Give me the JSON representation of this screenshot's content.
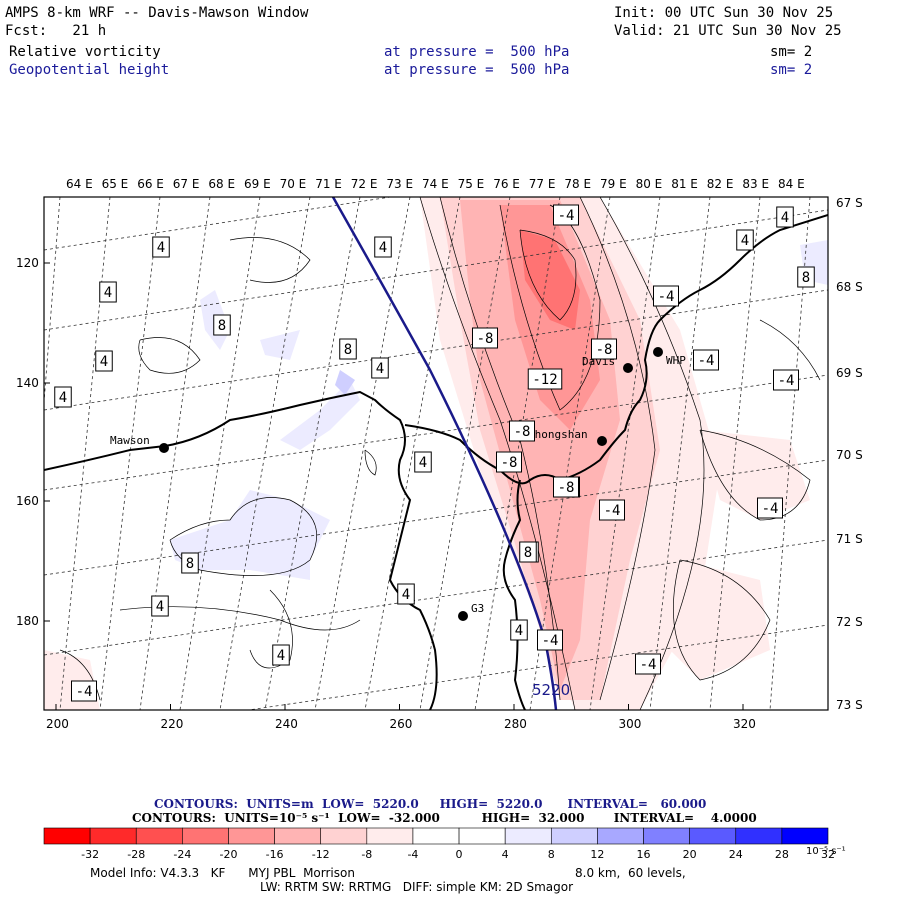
{
  "header": {
    "title": "AMPS 8-km WRF -- Davis-Mawson Window",
    "init": "Init: 00 UTC Sun 30 Nov 25",
    "fcst": "Fcst:   21 h",
    "valid": "Valid: 21 UTC Sun 30 Nov 25",
    "field1_name": "Relative vorticity",
    "field1_level": "at pressure =  500 hPa",
    "field1_sm": "sm= 2",
    "field2_name": "Geopotential height",
    "field2_level": "at pressure =  500 hPa",
    "field2_sm": "sm= 2"
  },
  "map": {
    "lon_labels": [
      "64 E",
      "65 E",
      "66 E",
      "67 E",
      "68 E",
      "69 E",
      "70 E",
      "71 E",
      "72 E",
      "73 E",
      "74 E",
      "75 E",
      "76 E",
      "77 E",
      "78 E",
      "79 E",
      "80 E",
      "81 E",
      "82 E",
      "83 E",
      "84 E"
    ],
    "lat_labels": [
      "67 S",
      "68 S",
      "69 S",
      "70 S",
      "71 S",
      "72 S",
      "73 S"
    ],
    "x_ticks": [
      "200",
      "220",
      "240",
      "260",
      "280",
      "300",
      "320"
    ],
    "y_ticks": [
      "120",
      "140",
      "160",
      "180"
    ],
    "stations": [
      {
        "name": "Mawson"
      },
      {
        "name": "Davis"
      },
      {
        "name": "WHP"
      },
      {
        "name": "Zhongshan"
      },
      {
        "name": "G3"
      }
    ],
    "height_contour_label": "5220",
    "contour_labels": [
      "4",
      "4",
      "4",
      "4",
      "4",
      "4",
      "4",
      "4",
      "4",
      "4",
      "4",
      "4",
      "4",
      "4",
      "-4",
      "-4",
      "-4",
      "-4",
      "-4",
      "-4",
      "-4",
      "-4",
      "-4",
      "8",
      "8",
      "8",
      "8",
      "8",
      "-8",
      "-8",
      "-8",
      "-8",
      "-8",
      "-8",
      "-12"
    ]
  },
  "legend": {
    "contours1": "CONTOURS:  UNITS=m  LOW=  5220.0     HIGH=  5220.0      INTERVAL=   60.000",
    "contours2": "CONTOURS:  UNITS=10⁻⁵ s⁻¹  LOW=  -32.000          HIGH=  32.000       INTERVAL=    4.0000",
    "ticks": [
      "-32",
      "-28",
      "-24",
      "-20",
      "-16",
      "-12",
      "-8",
      "-4",
      "0",
      "4",
      "8",
      "12",
      "16",
      "20",
      "24",
      "28",
      "32"
    ],
    "unit_label": "10⁻⁵ s⁻¹",
    "colors": [
      "#ff0000",
      "#ff2a2a",
      "#ff5050",
      "#ff7373",
      "#ff9696",
      "#ffb4b4",
      "#ffd2d2",
      "#ffecec",
      "#ffffff",
      "#ffffff",
      "#ecebff",
      "#cfcfff",
      "#a8a8ff",
      "#8080ff",
      "#5a5aff",
      "#3030ff",
      "#0000ff"
    ]
  },
  "footer": {
    "line1a": "Model Info: V4.3.3   KF      MYJ PBL  Morrison",
    "line1b": "8.0 km,  60 levels,",
    "line2": "LW: RRTM SW: RRTMG   DIFF: simple KM: 2D Smagor"
  }
}
